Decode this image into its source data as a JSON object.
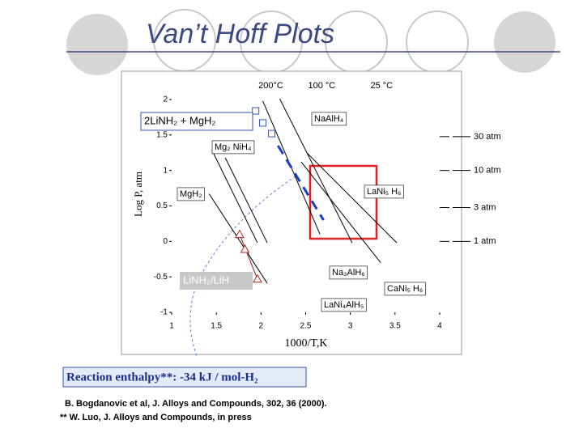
{
  "title": "Van’t Hoff Plots",
  "chart_data": {
    "type": "line",
    "ylabel": "Log P, atm",
    "xlabel": "1000/T,K",
    "xlim": [
      1,
      4
    ],
    "ylim": [
      -1,
      2
    ],
    "xticks": [
      1,
      1.5,
      2,
      2.5,
      3,
      3.5,
      4
    ],
    "yticks": [
      -1,
      -0.5,
      0,
      0.5,
      1,
      1.5,
      2
    ],
    "temperature_ticks": [
      {
        "value": 2.11,
        "label": "200°C"
      },
      {
        "value": 2.68,
        "label": "100 °C"
      },
      {
        "value": 3.35,
        "label": "25 °C"
      }
    ],
    "pressure_ticks": [
      {
        "value": 1.477,
        "label": "30 atm"
      },
      {
        "value": 1,
        "label": "10 atm"
      },
      {
        "value": 0.477,
        "label": "3 atm"
      },
      {
        "value": 0,
        "label": "1 atm"
      }
    ],
    "series": [
      {
        "color": "#000000",
        "x": [
          1.45,
          1.96
        ],
        "values": [
          1.29,
          -0.02
        ]
      },
      {
        "color": "#000000",
        "x": [
          1.6,
          2.07
        ],
        "values": [
          1.18,
          -0.02
        ]
      },
      {
        "color": "#000000",
        "x": [
          1.42,
          2.07
        ],
        "values": [
          0.67,
          -0.59
        ]
      },
      {
        "color": "#000000",
        "x": [
          2.02,
          2.66
        ],
        "values": [
          1.98,
          0.1
        ]
      },
      {
        "color": "#000000",
        "x": [
          2.21,
          3.02
        ],
        "values": [
          2.01,
          -0.02
        ]
      },
      {
        "color": "#000000",
        "x": [
          2.45,
          3.34
        ],
        "values": [
          1.12,
          -0.3
        ]
      },
      {
        "color": "#000000",
        "x": [
          2.52,
          3.52
        ],
        "values": [
          1.24,
          -0.02
        ]
      },
      {
        "color": "#1a3fc4",
        "dash": true,
        "x": [
          2.19,
          2.7
        ],
        "values": [
          1.35,
          0.3
        ]
      },
      {
        "color": "#8b1a1a",
        "x": [
          1.76,
          1.96
        ],
        "values": [
          0.1,
          -0.53
        ]
      }
    ],
    "markers": [
      {
        "shape": "square",
        "color": "#3355aa",
        "x": [
          1.94,
          2.02,
          2.12
        ],
        "values": [
          1.84,
          1.67,
          1.52
        ]
      },
      {
        "shape": "triangle",
        "color": "#b02020",
        "x": [
          1.76,
          1.82,
          1.96
        ],
        "values": [
          0.1,
          -0.11,
          -0.53
        ]
      }
    ],
    "annotations": [
      "2LiNH₂ + MgH₂",
      "NaAlH₄",
      "Mg₂ NiH₄",
      "MgH₂",
      "LaNi₅ H₆",
      "Na₃AlH₆",
      "CaNi₅ H₆",
      "LaNi₄AlH₅",
      "LiNH₂/LiH"
    ]
  },
  "enthalpy_note": "Reaction enthalpy**: -34 kJ / mol-H₂",
  "references": [
    "B. Bogdanovic et al, J. Alloys and Compounds, 302, 36 (2000).",
    "** W. Luo, J. Alloys and Compounds, in press"
  ]
}
